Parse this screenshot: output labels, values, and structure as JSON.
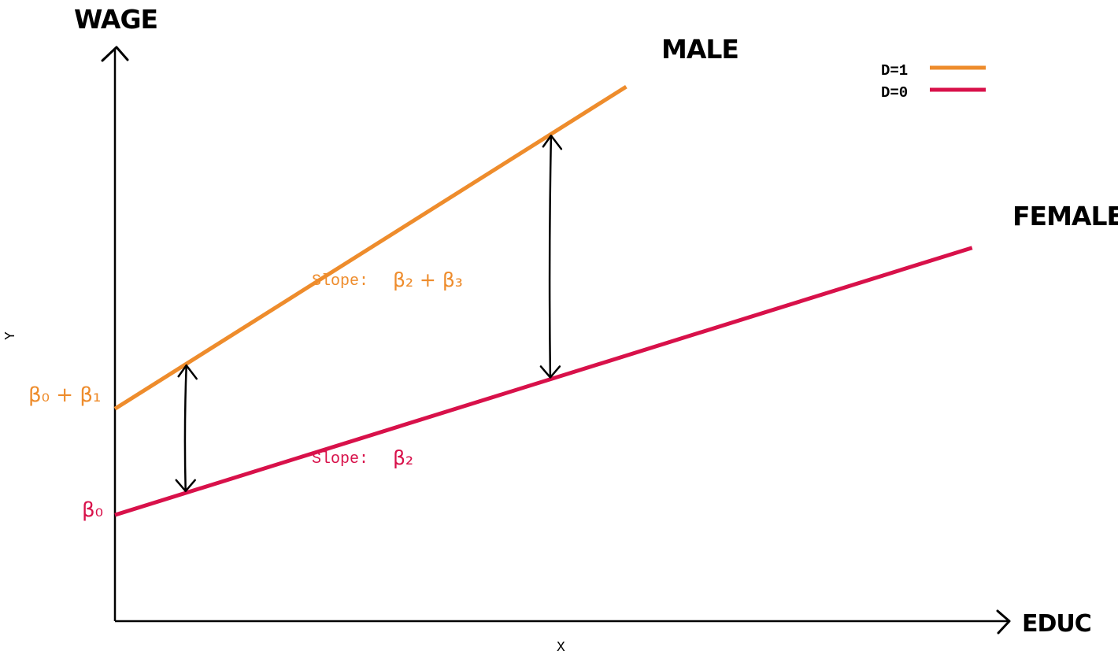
{
  "chart_data": {
    "type": "line",
    "xlabel": "X",
    "ylabel": "Y",
    "annotations": {
      "y_axis_title": "WAGE",
      "x_axis_title": "EDUC",
      "male_label": "MALE",
      "female_label": "FEMALE",
      "intercept_male": "β₀ + β₁",
      "intercept_female": "β₀",
      "slope_male_prefix": "Slope:",
      "slope_male_math": "β₂ + β₃",
      "slope_female_prefix": "Slope:",
      "slope_female_math": "β₂"
    },
    "legend": {
      "placement": "top-right",
      "entries": [
        {
          "label": "D=1",
          "color": "#ee8c2c"
        },
        {
          "label": "D=0",
          "color": "#d8114a"
        }
      ]
    },
    "series": [
      {
        "color": "#ee8c2c",
        "x": [
          0,
          6.8
        ],
        "y": [
          2.9,
          7.3
        ]
      },
      {
        "color": "#d8114a",
        "x": [
          0,
          11.4
        ],
        "y": [
          1.45,
          5.1
        ]
      }
    ],
    "gaps_marked_at_x": [
      0.95,
      5.8
    ],
    "xlim": [
      0,
      12
    ],
    "ylim": [
      0,
      8
    ],
    "grid": false,
    "colors": {
      "male": "#ee8c2c",
      "female": "#d8114a",
      "axis": "#000000"
    }
  }
}
